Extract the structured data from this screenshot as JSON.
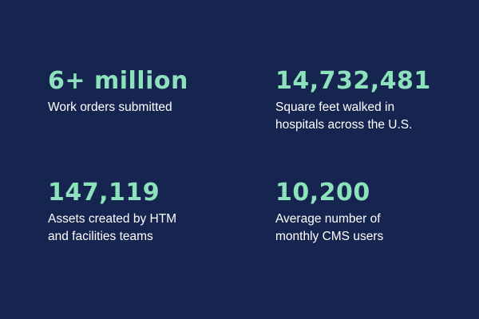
{
  "colors": {
    "background": "#16254f",
    "accent": "#8ee1bd",
    "text": "#ffffff"
  },
  "stats": [
    {
      "value": "6+ million",
      "label_lines": [
        "Work orders submitted"
      ]
    },
    {
      "value": "14,732,481",
      "label_lines": [
        "Square feet walked in",
        "hospitals across the U.S."
      ]
    },
    {
      "value": "147,119",
      "label_lines": [
        "Assets created by HTM",
        "and facilities teams"
      ]
    },
    {
      "value": "10,200",
      "label_lines": [
        "Average number of",
        "monthly CMS users"
      ]
    }
  ]
}
